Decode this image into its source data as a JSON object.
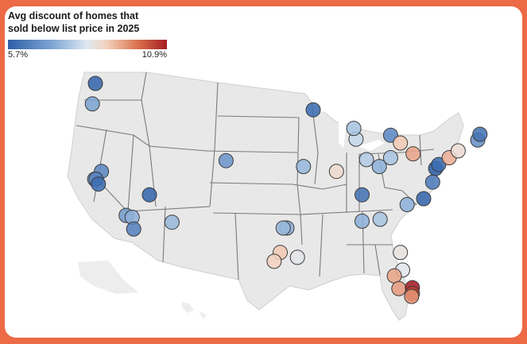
{
  "legend": {
    "title": "Avg discount of homes that\nsold below list price in 2025",
    "min_label": "5.7%",
    "max_label": "10.9%",
    "min_value": 5.7,
    "max_value": 10.9,
    "colors": [
      "#2e5fa8",
      "#7fa6d3",
      "#dfe9f2",
      "#f3d2bd",
      "#d9704c",
      "#a51d22"
    ]
  },
  "map": {
    "region": "United States",
    "basemap_color": "#e8e8e8",
    "border_color": "#7a7a7a"
  },
  "metros": [
    {
      "name": "Seattle",
      "lon": -122.3,
      "lat": 47.6,
      "value": 5.8
    },
    {
      "name": "Portland",
      "lon": -122.7,
      "lat": 45.5,
      "value": 6.7
    },
    {
      "name": "Sacramento",
      "lon": -121.5,
      "lat": 38.6,
      "value": 6.3
    },
    {
      "name": "San Francisco",
      "lon": -122.4,
      "lat": 37.8,
      "value": 6.8
    },
    {
      "name": "Oakland",
      "lon": -122.2,
      "lat": 37.8,
      "value": 6.2
    },
    {
      "name": "San Jose",
      "lon": -121.9,
      "lat": 37.3,
      "value": 5.9
    },
    {
      "name": "Las Vegas",
      "lon": -115.1,
      "lat": 36.2,
      "value": 5.8
    },
    {
      "name": "Los Angeles",
      "lon": -118.2,
      "lat": 34.1,
      "value": 6.6
    },
    {
      "name": "Riverside",
      "lon": -117.4,
      "lat": 33.9,
      "value": 6.9
    },
    {
      "name": "San Diego",
      "lon": -117.2,
      "lat": 32.7,
      "value": 6.2
    },
    {
      "name": "Phoenix",
      "lon": -112.1,
      "lat": 33.4,
      "value": 7.0
    },
    {
      "name": "Denver",
      "lon": -104.9,
      "lat": 39.7,
      "value": 6.5
    },
    {
      "name": "Minneapolis",
      "lon": -93.3,
      "lat": 44.9,
      "value": 5.9
    },
    {
      "name": "Kansas City",
      "lon": -94.6,
      "lat": 39.1,
      "value": 7.0
    },
    {
      "name": "St. Louis",
      "lon": -90.2,
      "lat": 38.6,
      "value": 8.5
    },
    {
      "name": "Chicago",
      "lon": -87.6,
      "lat": 41.9,
      "value": 7.5
    },
    {
      "name": "Milwaukee",
      "lon": -87.9,
      "lat": 43.0,
      "value": 7.2
    },
    {
      "name": "Indianapolis",
      "lon": -86.2,
      "lat": 39.8,
      "value": 7.3
    },
    {
      "name": "Detroit",
      "lon": -83.0,
      "lat": 42.3,
      "value": 6.3
    },
    {
      "name": "Cleveland",
      "lon": -81.7,
      "lat": 41.5,
      "value": 8.9
    },
    {
      "name": "Columbus",
      "lon": -83.0,
      "lat": 40.0,
      "value": 7.2
    },
    {
      "name": "Cincinnati",
      "lon": -84.5,
      "lat": 39.1,
      "value": 6.9
    },
    {
      "name": "Pittsburgh",
      "lon": -80.0,
      "lat": 40.4,
      "value": 9.3
    },
    {
      "name": "Nashville",
      "lon": -86.8,
      "lat": 36.2,
      "value": 6.0
    },
    {
      "name": "Charlotte",
      "lon": -80.8,
      "lat": 35.2,
      "value": 6.9
    },
    {
      "name": "Raleigh",
      "lon": -78.6,
      "lat": 35.8,
      "value": 5.8
    },
    {
      "name": "Richmond",
      "lon": -77.4,
      "lat": 37.5,
      "value": 6.1
    },
    {
      "name": "Washington",
      "lon": -77.0,
      "lat": 38.9,
      "value": 5.7
    },
    {
      "name": "Baltimore",
      "lon": -76.6,
      "lat": 39.3,
      "value": 5.9
    },
    {
      "name": "Philadelphia",
      "lon": -75.2,
      "lat": 40.0,
      "value": 9.2
    },
    {
      "name": "New York",
      "lon": -74.0,
      "lat": 40.7,
      "value": 8.4
    },
    {
      "name": "Providence",
      "lon": -71.4,
      "lat": 41.8,
      "value": 6.4
    },
    {
      "name": "Boston",
      "lon": -71.1,
      "lat": 42.4,
      "value": 6.0
    },
    {
      "name": "Atlanta",
      "lon": -84.4,
      "lat": 33.7,
      "value": 7.2
    },
    {
      "name": "Birmingham",
      "lon": -86.8,
      "lat": 33.5,
      "value": 6.9
    },
    {
      "name": "Dallas",
      "lon": -96.8,
      "lat": 32.8,
      "value": 6.9
    },
    {
      "name": "Fort Worth",
      "lon": -97.3,
      "lat": 32.8,
      "value": 7.0
    },
    {
      "name": "Austin",
      "lon": -97.7,
      "lat": 30.3,
      "value": 8.9
    },
    {
      "name": "San Antonio",
      "lon": -98.5,
      "lat": 29.4,
      "value": 8.8
    },
    {
      "name": "Houston",
      "lon": -95.4,
      "lat": 29.8,
      "value": 8.0
    },
    {
      "name": "Jacksonville",
      "lon": -81.7,
      "lat": 30.3,
      "value": 8.2
    },
    {
      "name": "Orlando",
      "lon": -81.4,
      "lat": 28.5,
      "value": 7.9
    },
    {
      "name": "Tampa",
      "lon": -82.5,
      "lat": 27.9,
      "value": 9.3
    },
    {
      "name": "Cape Coral",
      "lon": -81.9,
      "lat": 26.6,
      "value": 9.4
    },
    {
      "name": "West Palm Beach",
      "lon": -80.1,
      "lat": 26.7,
      "value": 10.9
    },
    {
      "name": "Fort Lauderdale",
      "lon": -80.1,
      "lat": 26.1,
      "value": 10.5
    },
    {
      "name": "Miami",
      "lon": -80.2,
      "lat": 25.8,
      "value": 9.5
    }
  ]
}
